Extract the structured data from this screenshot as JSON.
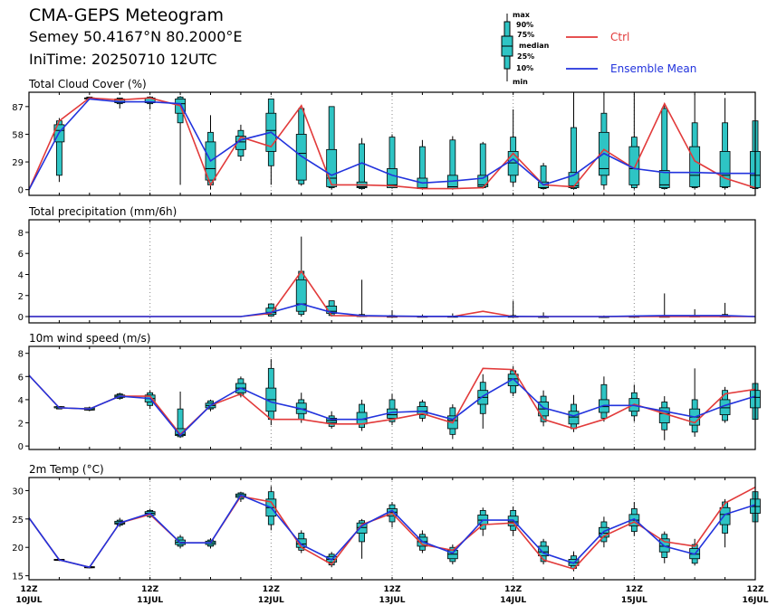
{
  "header": {
    "title": "CMA-GEPS Meteogram",
    "location": "Semey 50.4167°N 80.2000°E",
    "init_time": "IniTime: 20250710 12UTC"
  },
  "legend": {
    "box_labels": [
      "max",
      "90%",
      "75%",
      "median",
      "25%",
      "10%",
      "min"
    ],
    "ctrl_label": "Ctrl",
    "mean_label": "Ensemble Mean"
  },
  "colors": {
    "ctrl": "#e23a3a",
    "mean": "#2233dd",
    "box": "#2ec4c4",
    "grid": "#888888"
  },
  "chart_data": {
    "type": "line",
    "x_axis": {
      "steps_6h": 24,
      "major_ticks": [
        {
          "step": 0,
          "top": "12Z",
          "bottom": "10JUL"
        },
        {
          "step": 4,
          "top": "12Z",
          "bottom": "11JUL"
        },
        {
          "step": 8,
          "top": "12Z",
          "bottom": "12JUL"
        },
        {
          "step": 12,
          "top": "12Z",
          "bottom": "13JUL"
        },
        {
          "step": 16,
          "top": "12Z",
          "bottom": "14JUL"
        },
        {
          "step": 20,
          "top": "12Z",
          "bottom": "15JUL"
        },
        {
          "step": 24,
          "top": "12Z",
          "bottom": "16JUL"
        }
      ]
    },
    "panels": [
      {
        "title": "Total Cloud Cover (%)",
        "ylim": [
          -6,
          102
        ],
        "yticks": [
          0,
          29,
          58,
          87
        ],
        "ctrl": [
          0,
          72,
          96,
          94,
          96,
          88,
          5,
          55,
          45,
          88,
          5,
          5,
          4,
          1,
          1,
          2,
          38,
          5,
          3,
          42,
          22,
          90,
          30,
          12,
          2
        ],
        "mean": [
          0,
          60,
          95,
          92,
          92,
          90,
          30,
          52,
          60,
          35,
          15,
          28,
          15,
          7,
          9,
          12,
          32,
          5,
          15,
          38,
          22,
          18,
          18,
          17,
          17
        ],
        "boxes": [
          null,
          [
            8,
            15,
            50,
            62,
            68,
            72,
            75
          ],
          [
            95,
            95,
            96,
            96,
            96,
            97,
            97
          ],
          [
            85,
            90,
            91,
            92,
            95,
            96,
            96
          ],
          [
            84,
            90,
            91,
            92,
            96,
            97,
            97
          ],
          [
            5,
            70,
            80,
            90,
            95,
            97,
            98
          ],
          [
            0,
            5,
            10,
            22,
            50,
            60,
            78
          ],
          [
            30,
            35,
            42,
            50,
            56,
            62,
            68
          ],
          [
            5,
            25,
            40,
            62,
            80,
            95,
            95
          ],
          [
            4,
            6,
            10,
            38,
            58,
            85,
            85
          ],
          [
            0,
            2,
            3,
            12,
            42,
            87,
            87
          ],
          [
            0,
            1,
            2,
            3,
            8,
            48,
            54
          ],
          [
            1,
            2,
            2,
            5,
            22,
            55,
            58
          ],
          [
            0,
            1,
            1,
            2,
            12,
            45,
            52
          ],
          [
            0,
            1,
            1,
            3,
            15,
            52,
            56
          ],
          [
            1,
            2,
            3,
            5,
            15,
            48,
            50
          ],
          [
            3,
            8,
            15,
            28,
            40,
            55,
            84
          ],
          [
            0,
            1,
            2,
            2,
            8,
            25,
            28
          ],
          [
            0,
            1,
            2,
            4,
            18,
            65,
            100
          ],
          [
            0,
            5,
            15,
            22,
            60,
            80,
            100
          ],
          [
            0,
            2,
            5,
            22,
            45,
            55,
            100
          ],
          [
            0,
            1,
            2,
            5,
            20,
            85,
            90
          ],
          [
            0,
            2,
            3,
            15,
            45,
            70,
            100
          ],
          [
            0,
            2,
            3,
            15,
            40,
            70,
            96
          ],
          [
            0,
            1,
            2,
            15,
            40,
            72,
            72
          ]
        ]
      },
      {
        "title": "Total precipitation (mm/6h)",
        "ylim": [
          -0.6,
          9.2
        ],
        "yticks": [
          0,
          2,
          4,
          6,
          8
        ],
        "ctrl": [
          0,
          0,
          0,
          0,
          0,
          0,
          0,
          0,
          0.3,
          4.3,
          0.1,
          0.05,
          0.02,
          0,
          0,
          0.5,
          0,
          0,
          0,
          0,
          0,
          0,
          0,
          0,
          0
        ],
        "mean": [
          0,
          0,
          0,
          0,
          0,
          0,
          0,
          0,
          0.4,
          1.2,
          0.4,
          0.1,
          0.05,
          0.02,
          0.02,
          0,
          0.02,
          0,
          0,
          0,
          0.05,
          0.1,
          0.1,
          0.1,
          0
        ],
        "boxes": [
          null,
          null,
          null,
          null,
          null,
          null,
          null,
          null,
          [
            0,
            0.05,
            0.2,
            0.4,
            0.8,
            1.2,
            1.2
          ],
          [
            0,
            0.2,
            0.5,
            1.2,
            3.5,
            4.3,
            7.6
          ],
          [
            0,
            0.1,
            0.3,
            0.5,
            1.0,
            1.5,
            1.5
          ],
          [
            0,
            0,
            0,
            0.05,
            0.1,
            0.2,
            3.5
          ],
          [
            0,
            0,
            0,
            0,
            0.02,
            0.1,
            0.6
          ],
          [
            0,
            0,
            0,
            0,
            0.02,
            0.05,
            0.2
          ],
          [
            0,
            0,
            0,
            0,
            0.02,
            0.05,
            0.3
          ],
          null,
          [
            0,
            0,
            0,
            0,
            0.02,
            0.1,
            1.5
          ],
          [
            0,
            0,
            0,
            0,
            0,
            0.05,
            0.4
          ],
          null,
          [
            0,
            0,
            0,
            0,
            0,
            0,
            0.1
          ],
          [
            0,
            0,
            0,
            0,
            0.02,
            0.05,
            0.1
          ],
          [
            0,
            0,
            0,
            0,
            0.02,
            0.1,
            2.2
          ],
          [
            0,
            0,
            0,
            0,
            0.05,
            0.1,
            0.7
          ],
          [
            0,
            0,
            0,
            0,
            0.05,
            0.2,
            1.3
          ],
          null
        ]
      },
      {
        "title": "10m wind speed (m/s)",
        "ylim": [
          -0.3,
          8.6
        ],
        "yticks": [
          0,
          2,
          4,
          6,
          8
        ],
        "ctrl": [
          6.1,
          3.3,
          3.2,
          4.3,
          4.3,
          1.0,
          3.5,
          4.5,
          2.3,
          2.3,
          1.9,
          1.9,
          2.3,
          2.8,
          2.0,
          6.7,
          6.6,
          2.3,
          1.5,
          2.3,
          3.6,
          2.8,
          2.0,
          4.5,
          4.9
        ],
        "mean": [
          6.1,
          3.3,
          3.2,
          4.3,
          4.1,
          0.9,
          3.5,
          5.0,
          3.8,
          3.2,
          2.3,
          2.3,
          2.9,
          3.0,
          2.3,
          4.3,
          5.8,
          3.3,
          2.6,
          3.5,
          3.5,
          3.0,
          2.5,
          3.5,
          4.3
        ],
        "boxes": [
          null,
          [
            3.2,
            3.2,
            3.3,
            3.3,
            3.4,
            3.4,
            3.4
          ],
          [
            3.0,
            3.1,
            3.1,
            3.2,
            3.3,
            3.3,
            3.4
          ],
          [
            4.0,
            4.1,
            4.2,
            4.3,
            4.4,
            4.5,
            4.6
          ],
          [
            3.2,
            3.5,
            3.8,
            4.1,
            4.4,
            4.6,
            4.8
          ],
          [
            0.7,
            0.8,
            0.9,
            1.0,
            1.5,
            3.2,
            4.7
          ],
          [
            3.0,
            3.2,
            3.3,
            3.5,
            3.7,
            3.9,
            4.0
          ],
          [
            4.2,
            4.4,
            4.6,
            5.0,
            5.4,
            5.8,
            6.0
          ],
          [
            1.8,
            2.3,
            3.0,
            4.0,
            5.0,
            6.7,
            7.5
          ],
          [
            2.0,
            2.3,
            2.8,
            3.2,
            3.7,
            4.0,
            4.6
          ],
          [
            1.5,
            1.7,
            2.0,
            2.2,
            2.4,
            2.6,
            3.0
          ],
          [
            1.3,
            1.6,
            1.9,
            2.3,
            2.9,
            3.6,
            4.0
          ],
          [
            1.8,
            2.1,
            2.4,
            2.7,
            3.2,
            4.0,
            4.5
          ],
          [
            2.1,
            2.4,
            2.7,
            3.0,
            3.4,
            3.8,
            4.0
          ],
          [
            0.6,
            1.0,
            1.5,
            2.2,
            2.6,
            3.3,
            3.6
          ],
          [
            1.5,
            2.8,
            3.6,
            4.2,
            4.8,
            5.5,
            6.2
          ],
          [
            4.3,
            4.6,
            5.2,
            5.8,
            6.2,
            6.5,
            6.9
          ],
          [
            1.7,
            2.1,
            2.6,
            3.2,
            3.8,
            4.3,
            4.8
          ],
          [
            1.2,
            1.5,
            1.9,
            2.5,
            3.0,
            3.6,
            4.4
          ],
          [
            2.1,
            2.4,
            2.9,
            3.4,
            4.0,
            5.3,
            6.0
          ],
          [
            2.1,
            2.6,
            3.0,
            3.5,
            4.1,
            4.6,
            5.3
          ],
          [
            0.5,
            1.4,
            2.0,
            2.8,
            3.3,
            3.8,
            4.3
          ],
          [
            0.8,
            1.2,
            1.8,
            2.5,
            3.2,
            4.0,
            6.7
          ],
          [
            2.0,
            2.2,
            2.7,
            3.3,
            4.0,
            4.8,
            5.1
          ],
          [
            2.0,
            2.3,
            3.3,
            4.2,
            4.8,
            5.4,
            5.9
          ]
        ]
      },
      {
        "title": "2m Temp (°C)",
        "ylim": [
          14.3,
          32.3
        ],
        "yticks": [
          15,
          20,
          25,
          30
        ],
        "ctrl": [
          25.2,
          17.8,
          16.5,
          24.3,
          25.8,
          20.8,
          20.8,
          29.0,
          28.0,
          20.0,
          17.0,
          24.0,
          26.0,
          20.5,
          19.5,
          24.0,
          24.3,
          17.8,
          16.2,
          22.0,
          24.5,
          21.0,
          20.2,
          27.8,
          30.6
        ],
        "mean": [
          25.2,
          17.8,
          16.5,
          24.3,
          26.0,
          20.8,
          20.8,
          29.2,
          27.0,
          20.5,
          17.8,
          23.8,
          26.5,
          21.0,
          19.0,
          24.8,
          24.8,
          19.0,
          17.2,
          22.8,
          25.0,
          20.2,
          18.8,
          25.8,
          27.5
        ],
        "boxes": [
          null,
          [
            17.6,
            17.7,
            17.7,
            17.8,
            17.9,
            17.9,
            18.0
          ],
          [
            16.3,
            16.4,
            16.4,
            16.5,
            16.6,
            16.6,
            16.7
          ],
          [
            23.6,
            23.9,
            24.1,
            24.3,
            24.6,
            24.8,
            25.2
          ],
          [
            25.2,
            25.4,
            25.7,
            26.0,
            26.3,
            26.5,
            26.8
          ],
          [
            19.8,
            20.2,
            20.5,
            20.9,
            21.3,
            21.8,
            22.2
          ],
          [
            19.8,
            20.2,
            20.5,
            20.8,
            21.1,
            21.3,
            21.6
          ],
          [
            28.0,
            28.5,
            28.8,
            29.1,
            29.4,
            29.6,
            29.8
          ],
          [
            23.0,
            24.0,
            25.5,
            27.0,
            28.5,
            29.8,
            30.8
          ],
          [
            19.0,
            19.5,
            20.0,
            20.6,
            21.5,
            22.5,
            23.0
          ],
          [
            16.5,
            16.9,
            17.4,
            17.9,
            18.4,
            18.8,
            19.2
          ],
          [
            18.0,
            21.0,
            22.5,
            23.5,
            24.3,
            24.7,
            25.0
          ],
          [
            23.5,
            24.5,
            25.5,
            26.2,
            26.8,
            27.5,
            28.0
          ],
          [
            19.0,
            19.5,
            20.2,
            21.0,
            21.8,
            22.3,
            23.0
          ],
          [
            17.0,
            17.5,
            18.0,
            18.8,
            19.5,
            20.0,
            20.5
          ],
          [
            22.0,
            23.2,
            24.0,
            24.8,
            25.7,
            26.5,
            27.0
          ],
          [
            22.0,
            23.0,
            23.8,
            24.5,
            25.5,
            26.5,
            27.2
          ],
          [
            17.0,
            17.5,
            18.5,
            19.2,
            20.2,
            21.0,
            21.5
          ],
          [
            15.8,
            16.3,
            16.8,
            17.3,
            17.9,
            18.5,
            19.3
          ],
          [
            20.0,
            21.0,
            21.8,
            22.5,
            23.5,
            24.5,
            25.4
          ],
          [
            22.0,
            22.8,
            23.8,
            24.8,
            25.8,
            26.8,
            28.0
          ],
          [
            17.2,
            18.2,
            19.2,
            20.2,
            21.5,
            22.3,
            22.8
          ],
          [
            16.8,
            17.2,
            18.0,
            18.8,
            19.8,
            20.5,
            21.5
          ],
          [
            20.0,
            22.5,
            24.0,
            25.8,
            27.0,
            28.0,
            28.5
          ],
          [
            23.5,
            24.5,
            26.0,
            27.2,
            28.5,
            29.8,
            30.6
          ]
        ]
      }
    ]
  }
}
